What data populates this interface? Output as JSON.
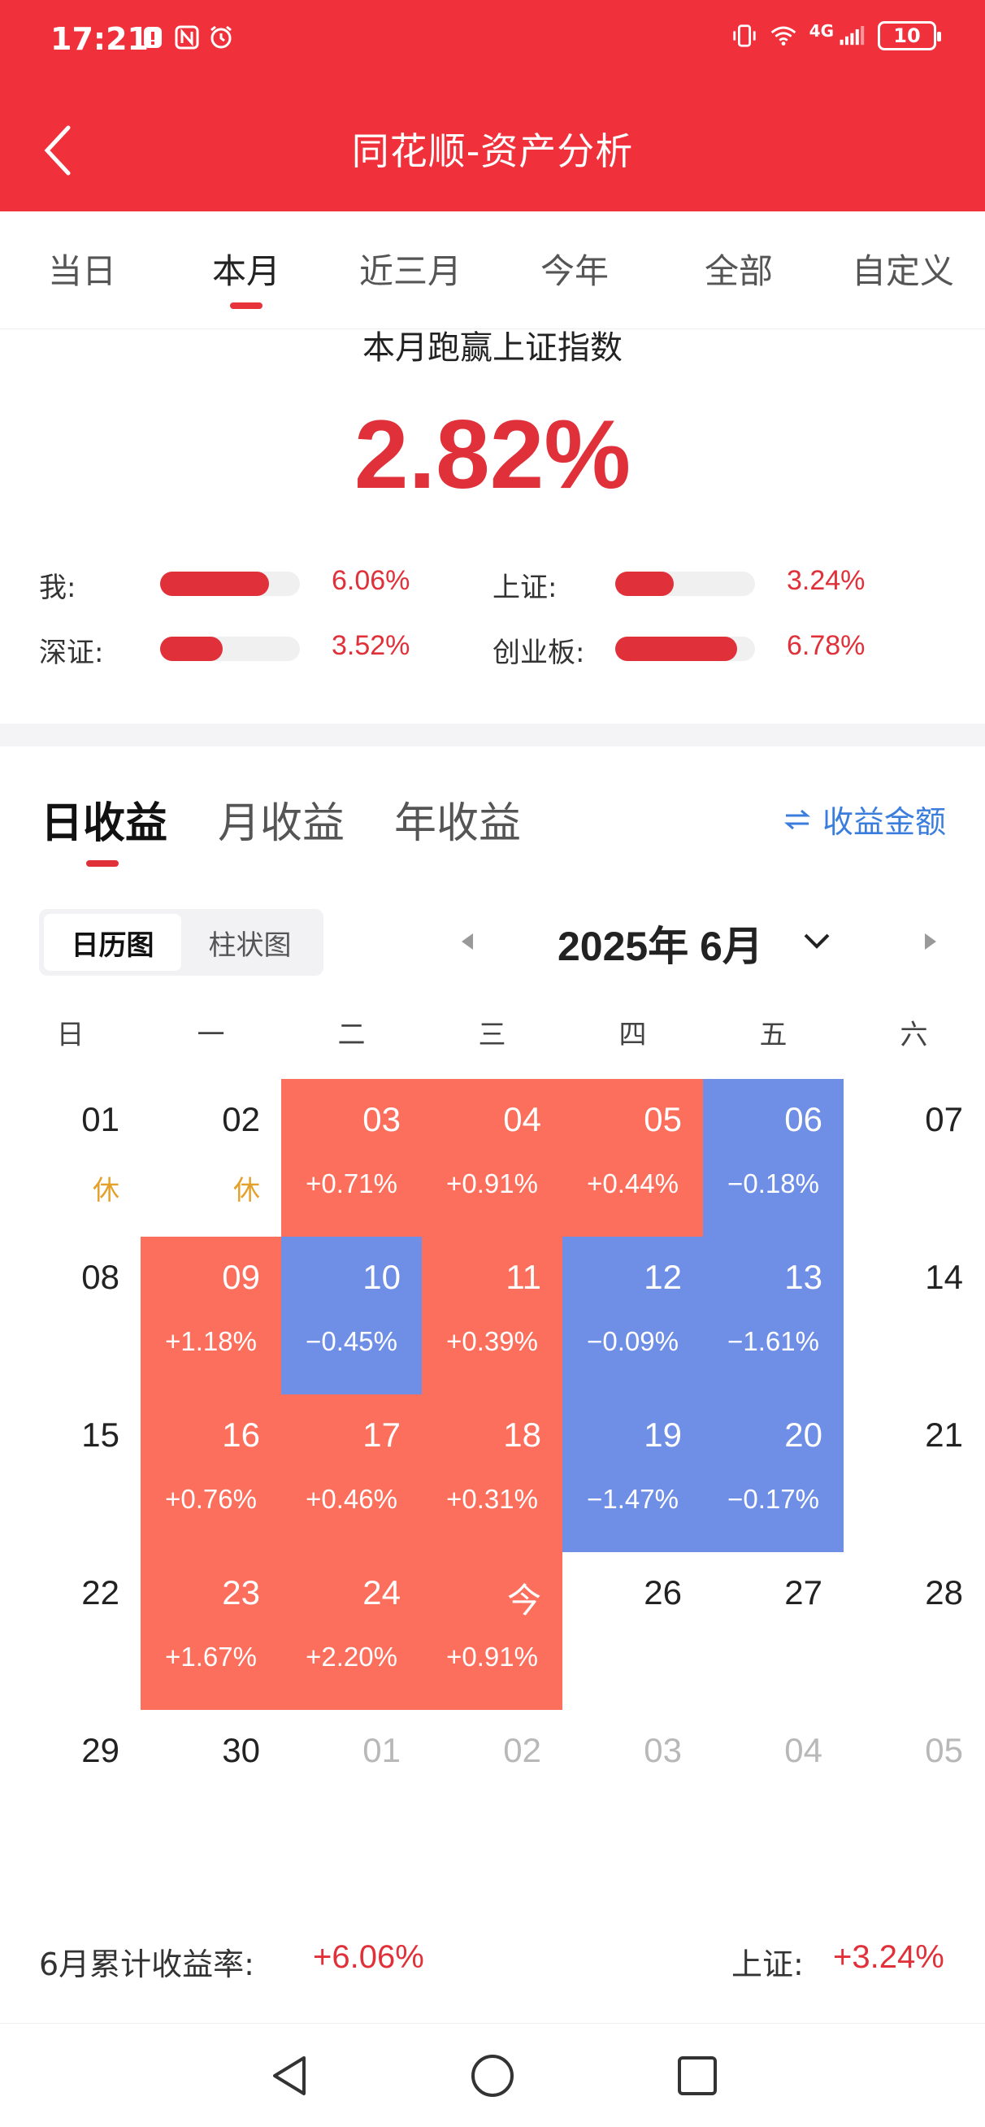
{
  "status_bar": {
    "time": "17:21",
    "network": "4G",
    "battery": "10",
    "icons": [
      "notification-icon",
      "nfc-icon",
      "alarm-icon",
      "vibrate-icon",
      "wifi-icon",
      "signal-icon",
      "battery-icon"
    ]
  },
  "header": {
    "title": "同花顺-资产分析",
    "back_icon": "chevron-left-icon",
    "background": "#f0303a"
  },
  "period_tabs": [
    "当日",
    "本月",
    "近三月",
    "今年",
    "全部",
    "自定义"
  ],
  "active_period_tab": "本月",
  "beat": {
    "title": "本月跑赢上证指数",
    "value": "2.82%"
  },
  "comparisons": [
    {
      "label": "我:",
      "value": "6.06%",
      "fraction": 0.78
    },
    {
      "label": "上证:",
      "value": "3.24%",
      "fraction": 0.42
    },
    {
      "label": "深证:",
      "value": "3.52%",
      "fraction": 0.45
    },
    {
      "label": "创业板:",
      "value": "6.78%",
      "fraction": 0.87
    }
  ],
  "earning_tabs": [
    "日收益",
    "月收益",
    "年收益"
  ],
  "active_earning_tab": "日收益",
  "amount_toggle": "收益金额",
  "view_toggle": [
    "日历图",
    "柱状图"
  ],
  "active_view": "日历图",
  "month_label": "2025年 6月",
  "weekdays": [
    "日",
    "一",
    "二",
    "三",
    "四",
    "五",
    "六"
  ],
  "calendar_weeks": [
    [
      {
        "day": "01",
        "note": "休"
      },
      {
        "day": "02",
        "note": "休"
      },
      {
        "day": "03",
        "ret": "+0.71%",
        "type": "pos"
      },
      {
        "day": "04",
        "ret": "+0.91%",
        "type": "pos"
      },
      {
        "day": "05",
        "ret": "+0.44%",
        "type": "pos"
      },
      {
        "day": "06",
        "ret": "−0.18%",
        "type": "neg"
      },
      {
        "day": "07"
      }
    ],
    [
      {
        "day": "08"
      },
      {
        "day": "09",
        "ret": "+1.18%",
        "type": "pos"
      },
      {
        "day": "10",
        "ret": "−0.45%",
        "type": "neg"
      },
      {
        "day": "11",
        "ret": "+0.39%",
        "type": "pos"
      },
      {
        "day": "12",
        "ret": "−0.09%",
        "type": "neg"
      },
      {
        "day": "13",
        "ret": "−1.61%",
        "type": "neg"
      },
      {
        "day": "14"
      }
    ],
    [
      {
        "day": "15"
      },
      {
        "day": "16",
        "ret": "+0.76%",
        "type": "pos"
      },
      {
        "day": "17",
        "ret": "+0.46%",
        "type": "pos"
      },
      {
        "day": "18",
        "ret": "+0.31%",
        "type": "pos"
      },
      {
        "day": "19",
        "ret": "−1.47%",
        "type": "neg"
      },
      {
        "day": "20",
        "ret": "−0.17%",
        "type": "neg"
      },
      {
        "day": "21"
      }
    ],
    [
      {
        "day": "22"
      },
      {
        "day": "23",
        "ret": "+1.67%",
        "type": "pos"
      },
      {
        "day": "24",
        "ret": "+2.20%",
        "type": "pos"
      },
      {
        "day": "今",
        "ret": "+0.91%",
        "type": "pos"
      },
      {
        "day": "26"
      },
      {
        "day": "27"
      },
      {
        "day": "28"
      }
    ],
    [
      {
        "day": "29"
      },
      {
        "day": "30"
      },
      {
        "day": "01",
        "type": "other"
      },
      {
        "day": "02",
        "type": "other"
      },
      {
        "day": "03",
        "type": "other"
      },
      {
        "day": "04",
        "type": "other"
      },
      {
        "day": "05",
        "type": "other"
      }
    ]
  ],
  "colors": {
    "positive": "#fd6f5d",
    "negative": "#6f8fe6",
    "accent_red": "#e0313a",
    "link_blue": "#3b7ddd",
    "rest_orange": "#e5a02a"
  },
  "summary": {
    "left_label": "6月累计收益率:",
    "left_value": "+6.06%",
    "right_label": "上证:",
    "right_value": "+3.24%"
  },
  "nav_bar": [
    "back-nav-icon",
    "home-nav-icon",
    "recents-nav-icon"
  ]
}
